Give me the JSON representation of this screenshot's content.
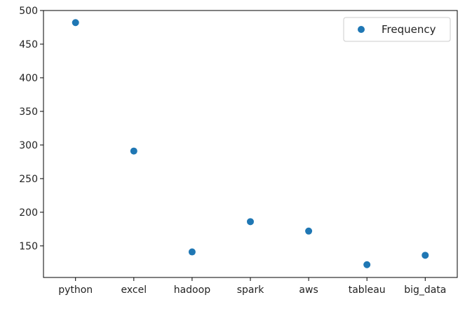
{
  "chart_data": {
    "type": "scatter",
    "categories": [
      "python",
      "excel",
      "hadoop",
      "spark",
      "aws",
      "tableau",
      "big_data"
    ],
    "series": [
      {
        "name": "Frequency",
        "values": [
          482,
          291,
          141,
          186,
          172,
          122,
          136
        ],
        "color": "#1f77b4"
      }
    ],
    "title": "",
    "xlabel": "",
    "ylabel": "",
    "ylim": [
      103,
      500
    ],
    "yticks": [
      150,
      200,
      250,
      300,
      350,
      400,
      450,
      500
    ],
    "grid": false,
    "legend": {
      "position": "top-right",
      "entries": [
        "Frequency"
      ]
    }
  }
}
